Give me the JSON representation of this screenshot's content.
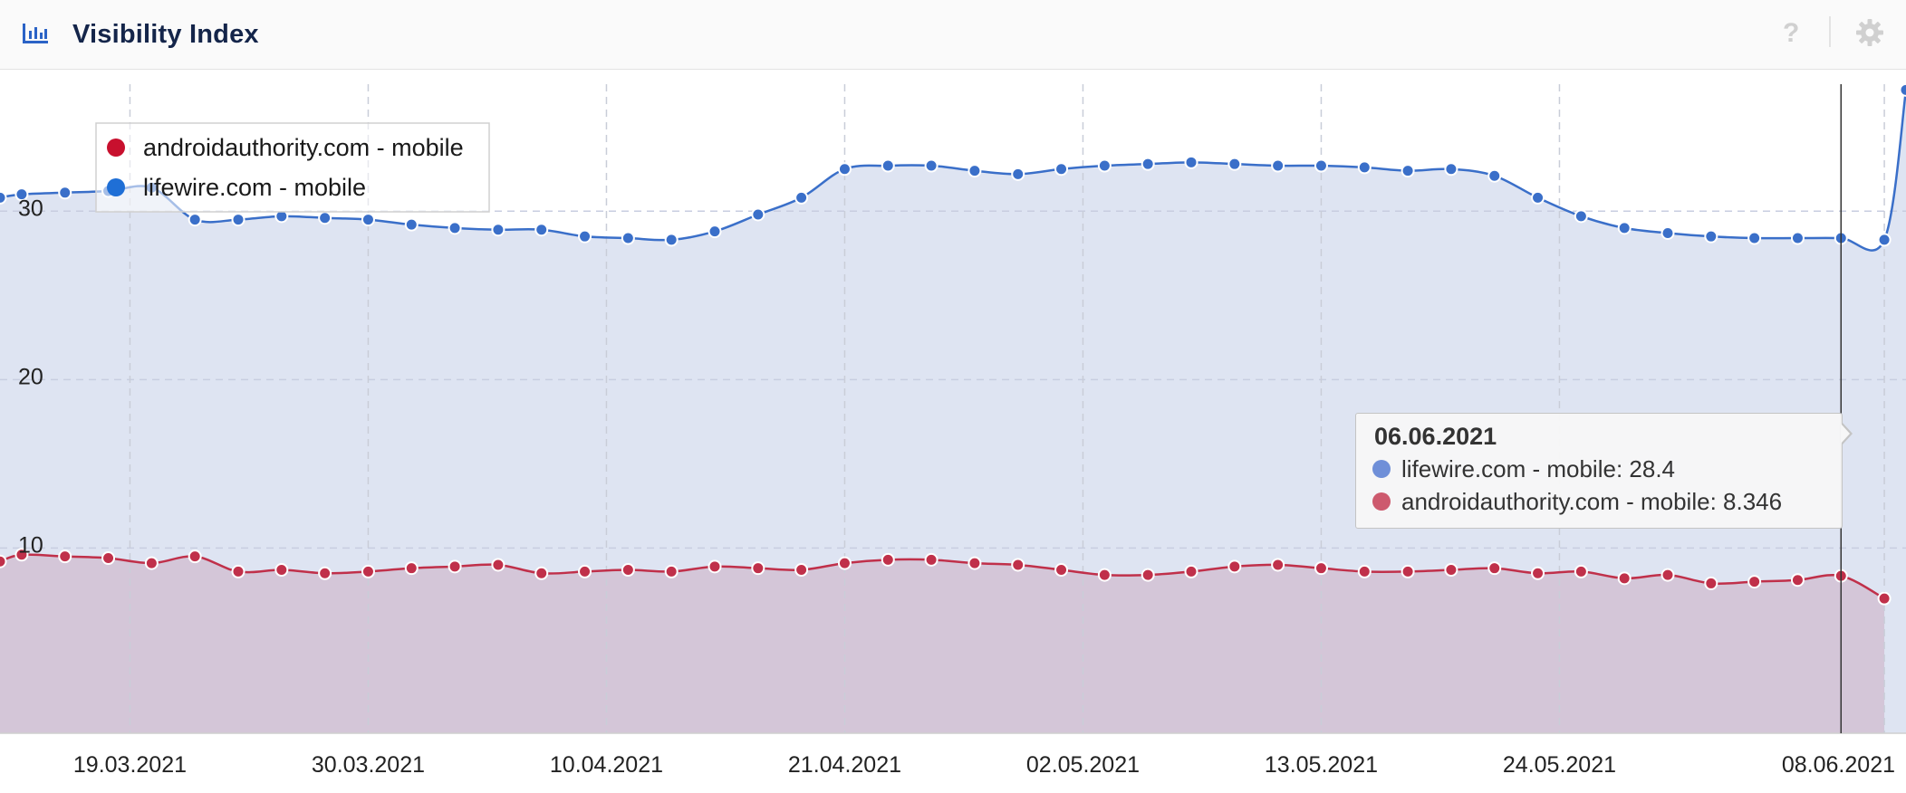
{
  "header": {
    "title": "Visibility Index",
    "icon": "bar-chart-icon",
    "help_label": "?",
    "settings_icon": "gear-icon"
  },
  "tooltip": {
    "date": "06.06.2021",
    "rows": [
      {
        "label": "lifewire.com - mobile: 28.4",
        "color": "#6f8fd8"
      },
      {
        "label": "androidauthority.com - mobile: 8.346",
        "color": "#cd5a6e"
      }
    ]
  },
  "chart_data": {
    "type": "area",
    "x_tick_labels": [
      "19.03.2021",
      "30.03.2021",
      "10.04.2021",
      "21.04.2021",
      "02.05.2021",
      "13.05.2021",
      "24.05.2021",
      "08.06.2021"
    ],
    "y_tick_labels": [
      "10",
      "20",
      "30"
    ],
    "ylim": [
      -1,
      38.4
    ],
    "grid": true,
    "legend_position": "top-left",
    "crosshair_x": "06.06.2021",
    "x_start": "13.03.2021",
    "x_end": "09.06.2021",
    "series": [
      {
        "name": "androidauthority.com - mobile",
        "color": "#c0304a",
        "fill": "#d4c6d8",
        "x": [
          "13.03.2021",
          "14.03.2021",
          "16.03.2021",
          "18.03.2021",
          "20.03.2021",
          "22.03.2021",
          "24.03.2021",
          "26.03.2021",
          "28.03.2021",
          "30.03.2021",
          "01.04.2021",
          "03.04.2021",
          "05.04.2021",
          "07.04.2021",
          "09.04.2021",
          "11.04.2021",
          "13.04.2021",
          "15.04.2021",
          "17.04.2021",
          "19.04.2021",
          "21.04.2021",
          "23.04.2021",
          "25.04.2021",
          "27.04.2021",
          "29.04.2021",
          "01.05.2021",
          "03.05.2021",
          "05.05.2021",
          "07.05.2021",
          "09.05.2021",
          "11.05.2021",
          "13.05.2021",
          "15.05.2021",
          "17.05.2021",
          "19.05.2021",
          "21.05.2021",
          "23.05.2021",
          "25.05.2021",
          "27.05.2021",
          "29.05.2021",
          "31.05.2021",
          "02.06.2021",
          "04.06.2021",
          "06.06.2021",
          "08.06.2021"
        ],
        "values": [
          9.2,
          9.6,
          9.5,
          9.4,
          9.1,
          9.5,
          8.6,
          8.7,
          8.5,
          8.6,
          8.8,
          8.9,
          9.0,
          8.5,
          8.6,
          8.7,
          8.6,
          8.9,
          8.8,
          8.7,
          9.1,
          9.3,
          9.3,
          9.1,
          9.0,
          8.7,
          8.4,
          8.4,
          8.6,
          8.9,
          9.0,
          8.8,
          8.6,
          8.6,
          8.7,
          8.8,
          8.5,
          8.6,
          8.2,
          8.4,
          7.9,
          8.0,
          8.1,
          8.346,
          7.0
        ]
      },
      {
        "name": "lifewire.com - mobile",
        "color": "#3a6fc9",
        "fill": "#dee4f2",
        "x": [
          "13.03.2021",
          "14.03.2021",
          "16.03.2021",
          "18.03.2021",
          "20.03.2021",
          "22.03.2021",
          "24.03.2021",
          "26.03.2021",
          "28.03.2021",
          "30.03.2021",
          "01.04.2021",
          "03.04.2021",
          "05.04.2021",
          "07.04.2021",
          "09.04.2021",
          "11.04.2021",
          "13.04.2021",
          "15.04.2021",
          "17.04.2021",
          "19.04.2021",
          "21.04.2021",
          "23.04.2021",
          "25.04.2021",
          "27.04.2021",
          "29.04.2021",
          "01.05.2021",
          "03.05.2021",
          "05.05.2021",
          "07.05.2021",
          "09.05.2021",
          "11.05.2021",
          "13.05.2021",
          "15.05.2021",
          "17.05.2021",
          "19.05.2021",
          "21.05.2021",
          "23.05.2021",
          "25.05.2021",
          "27.05.2021",
          "29.05.2021",
          "31.05.2021",
          "02.06.2021",
          "04.06.2021",
          "06.06.2021",
          "08.06.2021",
          "09.06.2021"
        ],
        "values": [
          30.8,
          31.0,
          31.1,
          31.2,
          31.4,
          29.5,
          29.5,
          29.7,
          29.6,
          29.5,
          29.2,
          29.0,
          28.9,
          28.9,
          28.5,
          28.4,
          28.3,
          28.8,
          29.8,
          30.8,
          32.5,
          32.7,
          32.7,
          32.4,
          32.2,
          32.5,
          32.7,
          32.8,
          32.9,
          32.8,
          32.7,
          32.7,
          32.6,
          32.4,
          32.5,
          32.1,
          30.8,
          29.7,
          29.0,
          28.7,
          28.5,
          28.4,
          28.4,
          28.4,
          28.3,
          37.2
        ]
      }
    ]
  }
}
